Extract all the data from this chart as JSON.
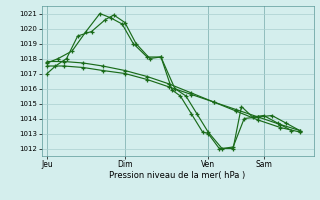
{
  "xlabel": "Pression niveau de la mer( hPa )",
  "bg_color": "#d4eeed",
  "grid_color": "#aacfcf",
  "line_color": "#1a6b1a",
  "vline_color": "#5a9898",
  "ylim": [
    1011.5,
    1021.5
  ],
  "yticks": [
    1012,
    1013,
    1014,
    1015,
    1016,
    1017,
    1018,
    1019,
    1020,
    1021
  ],
  "xlim": [
    0,
    9.8
  ],
  "xtick_labels": [
    "Jeu",
    "Dim",
    "Ven",
    "Sam"
  ],
  "xtick_positions": [
    0.2,
    3.0,
    6.0,
    8.0
  ],
  "line1_x": [
    0.2,
    0.5,
    0.9,
    1.3,
    1.8,
    2.3,
    2.6,
    3.0,
    3.4,
    3.9,
    4.3,
    4.7,
    5.0,
    5.4,
    5.8,
    6.0,
    6.4,
    6.9,
    7.2,
    7.6,
    8.0,
    8.5,
    9.0
  ],
  "line1_y": [
    1017.0,
    1017.5,
    1018.0,
    1019.5,
    1019.8,
    1020.6,
    1020.9,
    1020.4,
    1019.0,
    1018.0,
    1018.1,
    1015.9,
    1015.5,
    1014.3,
    1013.1,
    1013.0,
    1012.0,
    1012.0,
    1014.8,
    1014.1,
    1014.2,
    1013.7,
    1013.2
  ],
  "line2_x": [
    0.2,
    0.6,
    1.1,
    1.6,
    2.1,
    2.5,
    2.9,
    3.3,
    3.8,
    4.3,
    4.8,
    5.2,
    5.6,
    6.0,
    6.5,
    6.9,
    7.3,
    7.8,
    8.3,
    8.8,
    9.3
  ],
  "line2_y": [
    1017.7,
    1018.0,
    1018.5,
    1019.8,
    1021.0,
    1020.7,
    1020.3,
    1019.0,
    1018.1,
    1018.1,
    1016.0,
    1015.5,
    1014.3,
    1013.1,
    1012.0,
    1012.1,
    1014.0,
    1014.1,
    1014.2,
    1013.7,
    1013.2
  ],
  "line3_x": [
    0.2,
    0.8,
    1.5,
    2.2,
    3.0,
    3.8,
    4.6,
    5.4,
    6.2,
    7.0,
    7.8,
    8.6,
    9.3
  ],
  "line3_y": [
    1017.5,
    1017.5,
    1017.4,
    1017.2,
    1017.0,
    1016.6,
    1016.1,
    1015.6,
    1015.1,
    1014.6,
    1014.1,
    1013.6,
    1013.2
  ],
  "line4_x": [
    0.2,
    0.8,
    1.5,
    2.2,
    3.0,
    3.8,
    4.6,
    5.4,
    6.2,
    7.0,
    7.8,
    8.6,
    9.3
  ],
  "line4_y": [
    1017.8,
    1017.8,
    1017.7,
    1017.5,
    1017.2,
    1016.8,
    1016.3,
    1015.7,
    1015.1,
    1014.5,
    1013.9,
    1013.4,
    1013.1
  ]
}
